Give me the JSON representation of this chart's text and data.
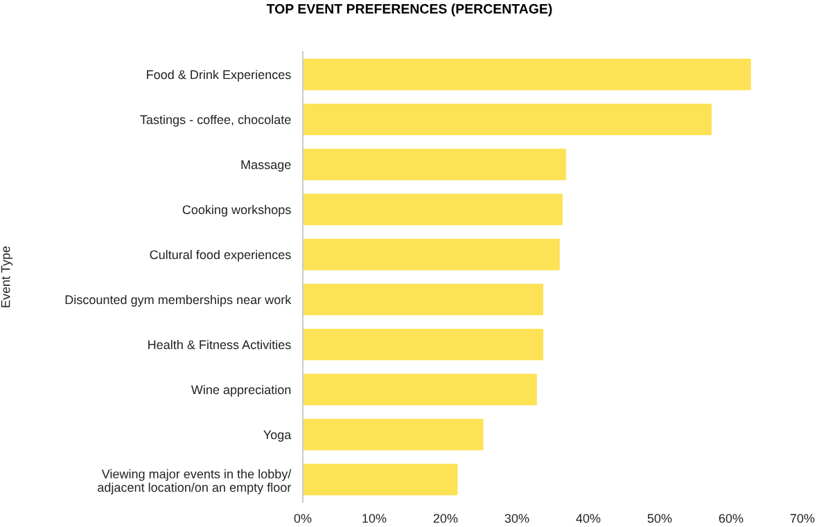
{
  "chart_data": {
    "type": "bar",
    "orientation": "horizontal",
    "title": "TOP EVENT PREFERENCES (PERCENTAGE)",
    "ylabel": "Event Type",
    "categories": [
      "Food & Drink Experiences",
      "Tastings - coffee, chocolate",
      "Massage",
      "Cooking workshops",
      "Cultural food experiences",
      "Discounted gym memberships near work",
      "Health & Fitness Activities",
      "Wine appreciation",
      "Yoga",
      "Viewing major events in the lobby/\nadjacent location/on an empty floor"
    ],
    "values": [
      62.8,
      57.3,
      36.9,
      36.4,
      36.0,
      33.7,
      33.7,
      32.8,
      25.3,
      21.7
    ],
    "color": "#fde256",
    "xlim": [
      0,
      70
    ],
    "xticks": [
      {
        "value": 0,
        "label": "0%"
      },
      {
        "value": 10,
        "label": "10%"
      },
      {
        "value": 20,
        "label": "20%"
      },
      {
        "value": 30,
        "label": "30%"
      },
      {
        "value": 40,
        "label": "40%"
      },
      {
        "value": 50,
        "label": "50%"
      },
      {
        "value": 60,
        "label": "60%"
      },
      {
        "value": 70,
        "label": "70%"
      }
    ],
    "grid": false,
    "legend": false
  }
}
